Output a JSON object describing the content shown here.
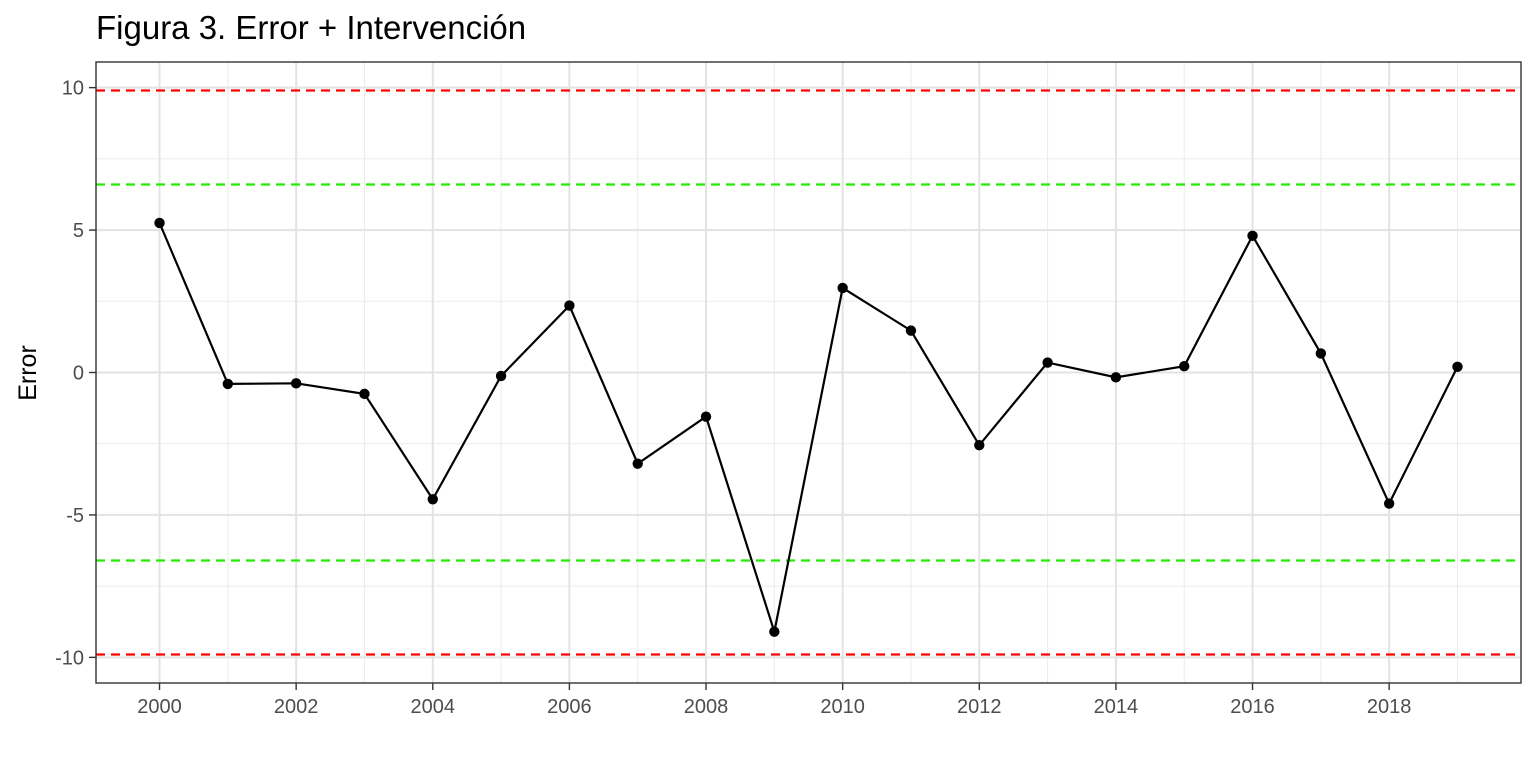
{
  "chart_data": {
    "type": "line",
    "title": "Figura 3. Error + Intervención",
    "xlabel": "",
    "ylabel": "Error",
    "x": [
      2000,
      2001,
      2002,
      2003,
      2004,
      2005,
      2006,
      2007,
      2008,
      2009,
      2010,
      2011,
      2012,
      2013,
      2014,
      2015,
      2016,
      2017,
      2018,
      2019
    ],
    "series": [
      {
        "values": [
          5.25,
          -0.4,
          -0.38,
          -0.75,
          -4.45,
          -0.12,
          2.35,
          -3.2,
          -1.55,
          -9.1,
          2.97,
          1.47,
          -2.55,
          0.35,
          -0.17,
          0.22,
          4.8,
          0.67,
          -4.6,
          0.2
        ],
        "color": "#000000"
      }
    ],
    "reference_lines": [
      {
        "y": 9.9,
        "color": "#ff0000",
        "style": "dashed"
      },
      {
        "y": 6.6,
        "color": "#22ee00",
        "style": "dashed"
      },
      {
        "y": -6.6,
        "color": "#22ee00",
        "style": "dashed"
      },
      {
        "y": -9.9,
        "color": "#ff0000",
        "style": "dashed"
      }
    ],
    "xlim": [
      1999.07,
      2019.93
    ],
    "ylim": [
      -10.9,
      10.9
    ],
    "x_ticks": [
      2000,
      2002,
      2004,
      2006,
      2008,
      2010,
      2012,
      2014,
      2016,
      2018
    ],
    "x_tick_labels": [
      "2000",
      "2002",
      "2004",
      "2006",
      "2008",
      "2010",
      "2012",
      "2014",
      "2016",
      "2018"
    ],
    "x_minor_ticks": [
      2001,
      2003,
      2005,
      2007,
      2009,
      2011,
      2013,
      2015,
      2017,
      2019
    ],
    "y_ticks": [
      -10,
      -5,
      0,
      5,
      10
    ],
    "y_tick_labels": [
      "-10",
      "-5",
      "0",
      "5",
      "10"
    ],
    "y_minor_ticks": [
      -7.5,
      -2.5,
      2.5,
      7.5
    ],
    "grid": true,
    "legend": "none"
  }
}
